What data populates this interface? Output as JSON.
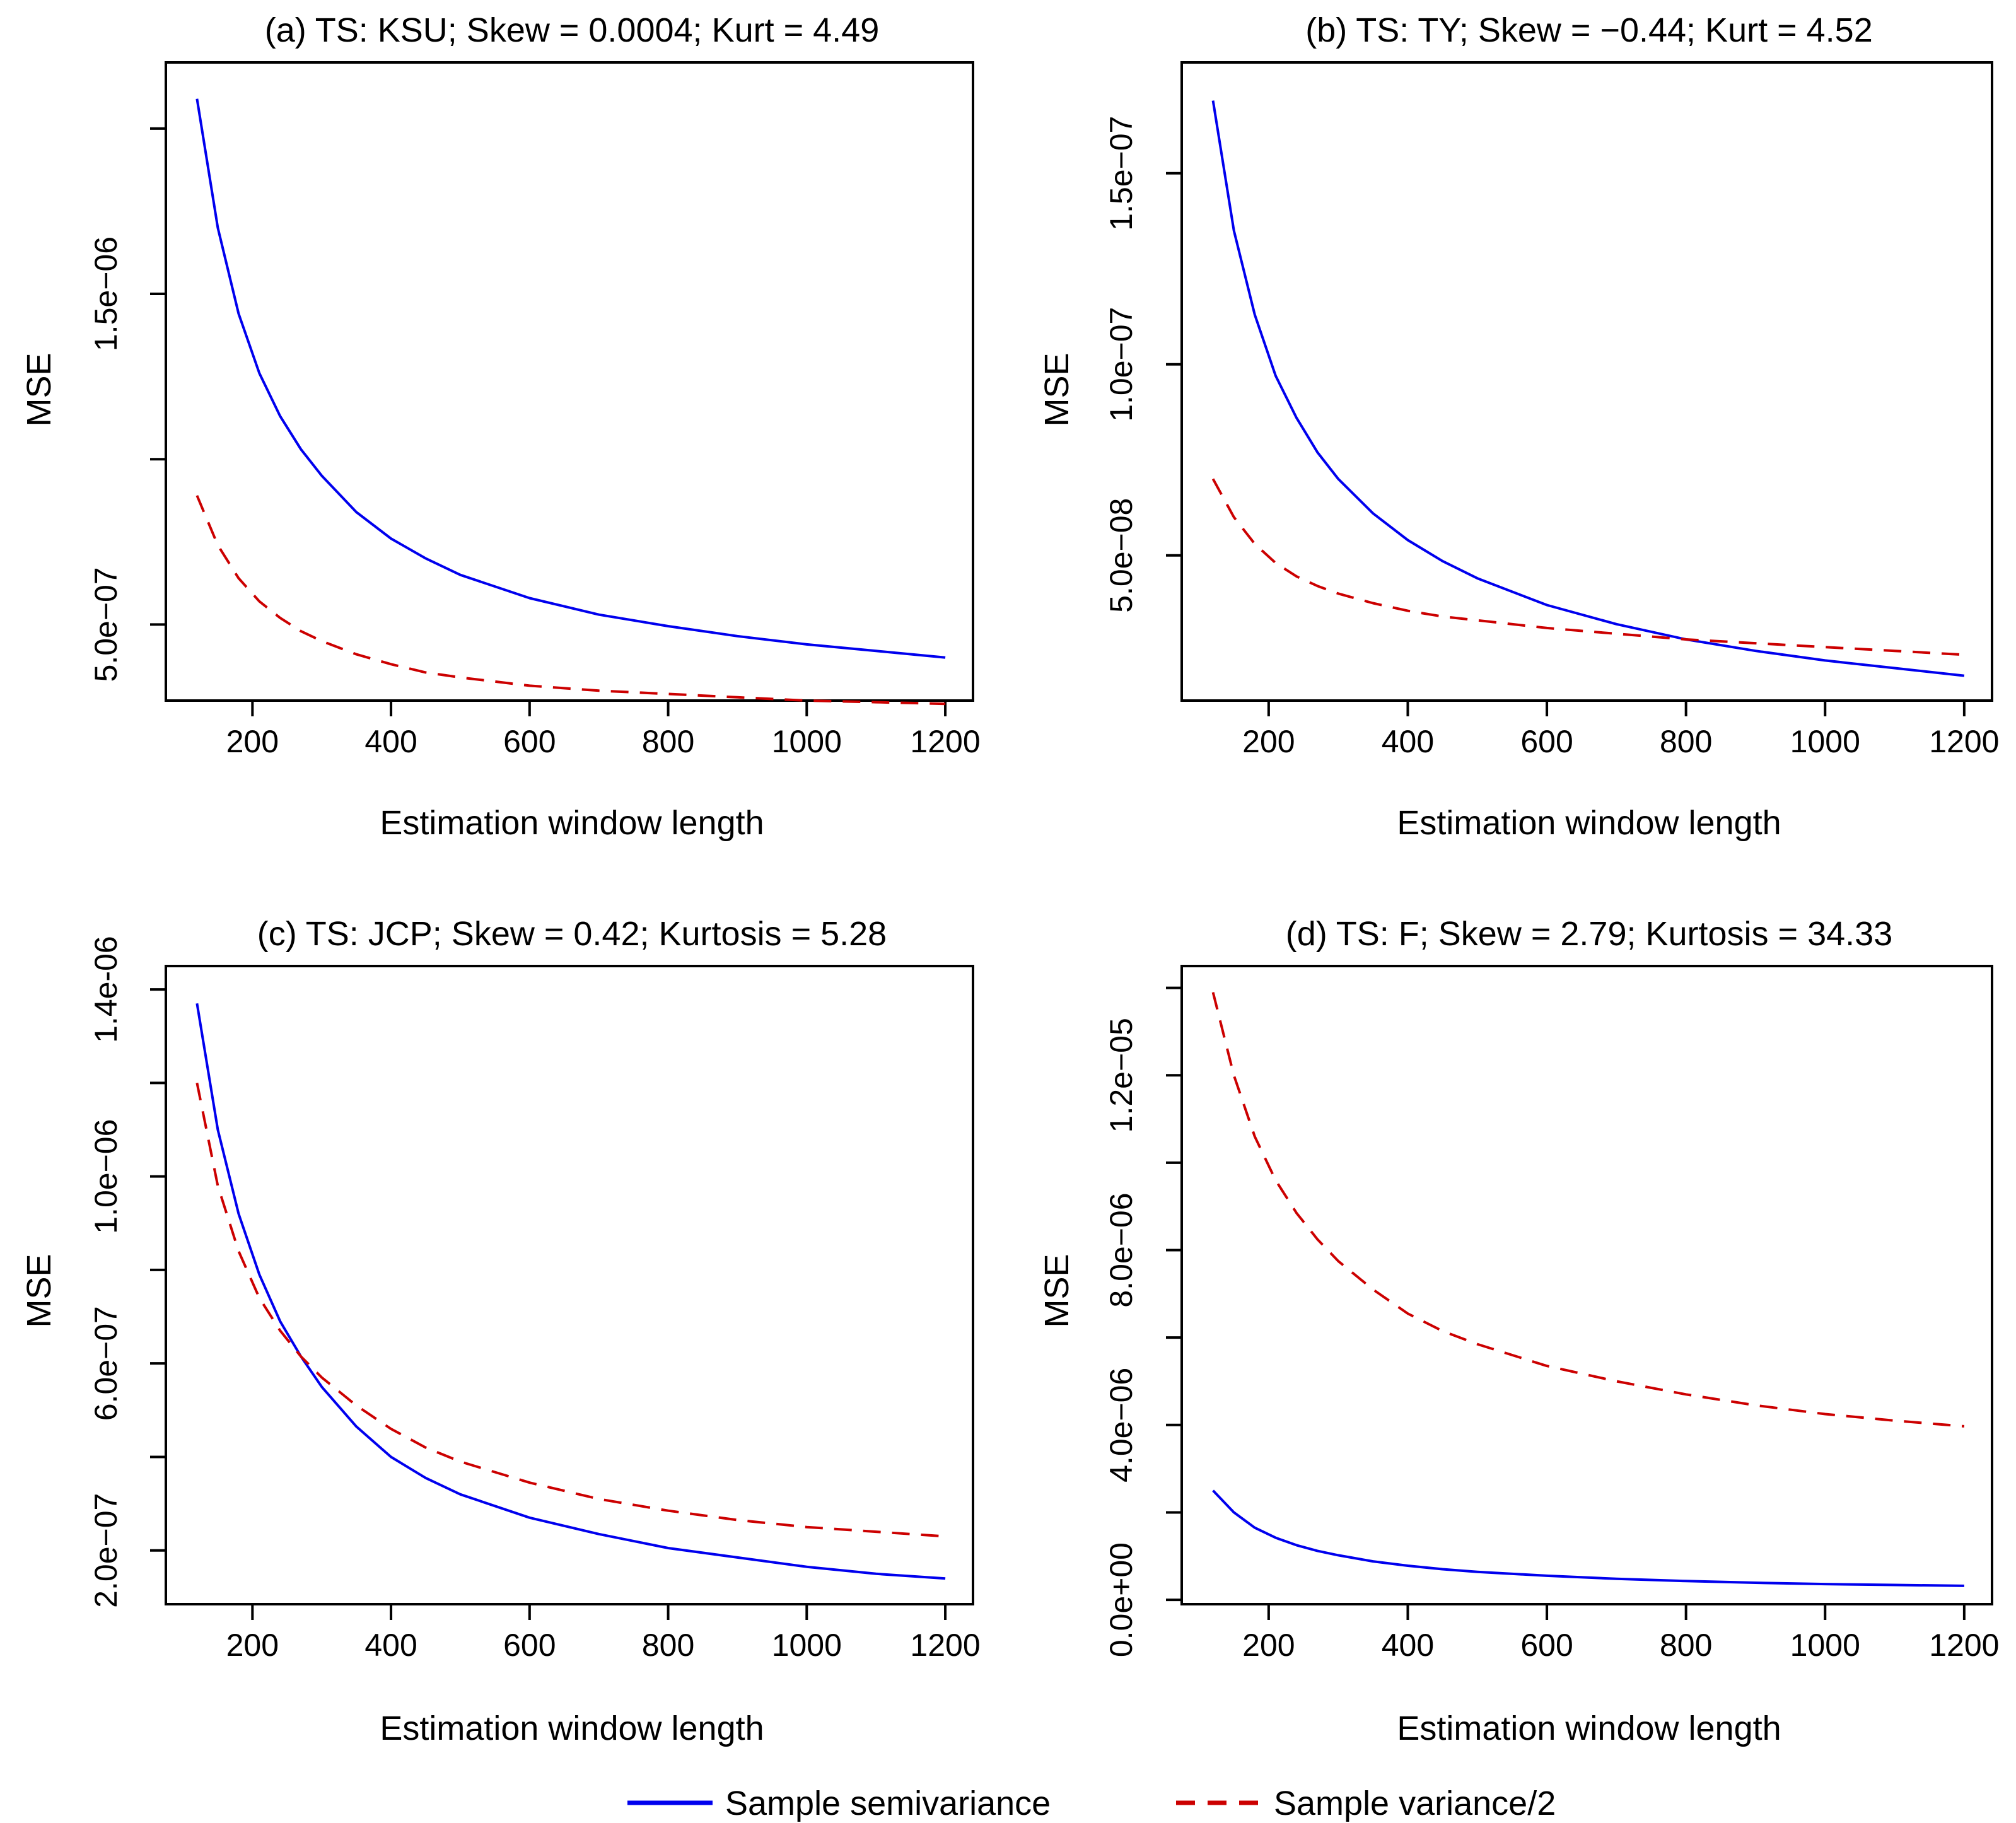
{
  "chart_data": [
    {
      "type": "line",
      "title": "(a) TS: KSU; Skew = 0.0004; Kurt = 4.49",
      "xlabel": "Estimation window length",
      "ylabel": "MSE",
      "xlim": [
        75,
        1240
      ],
      "ylim": [
        2.7e-07,
        2.2e-06
      ],
      "xticks": [
        200,
        400,
        600,
        800,
        1000,
        1200
      ],
      "xtick_labels": [
        "200",
        "400",
        "600",
        "800",
        "1000",
        "1200"
      ],
      "yticks": [
        5e-07,
        1e-06,
        1.5e-06,
        2e-06
      ],
      "ytick_labels": [
        "5.0e−07",
        "",
        "1.5e−06",
        ""
      ],
      "x": [
        120,
        150,
        180,
        210,
        240,
        270,
        300,
        350,
        400,
        450,
        500,
        600,
        700,
        800,
        900,
        1000,
        1100,
        1200
      ],
      "series": [
        {
          "name": "Sample semivariance",
          "values": [
            2.09e-06,
            1.7e-06,
            1.44e-06,
            1.26e-06,
            1.13e-06,
            1.03e-06,
            9.5e-07,
            8.4e-07,
            7.6e-07,
            7e-07,
            6.5e-07,
            5.8e-07,
            5.3e-07,
            4.95e-07,
            4.65e-07,
            4.4e-07,
            4.2e-07,
            4e-07
          ]
        },
        {
          "name": "Sample variance/2",
          "values": [
            8.9e-07,
            7.4e-07,
            6.4e-07,
            5.7e-07,
            5.2e-07,
            4.8e-07,
            4.5e-07,
            4.1e-07,
            3.8e-07,
            3.55e-07,
            3.4e-07,
            3.15e-07,
            3e-07,
            2.9e-07,
            2.8e-07,
            2.7e-07,
            2.65e-07,
            2.6e-07
          ]
        }
      ]
    },
    {
      "type": "line",
      "title": "(b) TS: TY; Skew = −0.44; Kurt = 4.52",
      "xlabel": "Estimation window length",
      "ylabel": "MSE",
      "xlim": [
        75,
        1240
      ],
      "ylim": [
        1.2e-08,
        1.79e-07
      ],
      "xticks": [
        200,
        400,
        600,
        800,
        1000,
        1200
      ],
      "xtick_labels": [
        "200",
        "400",
        "600",
        "800",
        "1000",
        "1200"
      ],
      "yticks": [
        5e-08,
        1e-07,
        1.5e-07
      ],
      "ytick_labels": [
        "5.0e−08",
        "1.0e−07",
        "1.5e−07"
      ],
      "x": [
        120,
        150,
        180,
        210,
        240,
        270,
        300,
        350,
        400,
        450,
        500,
        600,
        700,
        800,
        900,
        1000,
        1100,
        1200
      ],
      "series": [
        {
          "name": "Sample semivariance",
          "values": [
            1.69e-07,
            1.35e-07,
            1.13e-07,
            9.7e-08,
            8.6e-08,
            7.7e-08,
            7e-08,
            6.1e-08,
            5.4e-08,
            4.85e-08,
            4.4e-08,
            3.7e-08,
            3.2e-08,
            2.8e-08,
            2.5e-08,
            2.25e-08,
            2.05e-08,
            1.85e-08
          ]
        },
        {
          "name": "Sample variance/2",
          "values": [
            7e-08,
            6e-08,
            5.3e-08,
            4.8e-08,
            4.45e-08,
            4.2e-08,
            4e-08,
            3.75e-08,
            3.55e-08,
            3.4e-08,
            3.3e-08,
            3.1e-08,
            2.95e-08,
            2.8e-08,
            2.7e-08,
            2.6e-08,
            2.5e-08,
            2.4e-08
          ]
        }
      ]
    },
    {
      "type": "line",
      "title": "(c) TS: JCP; Skew = 0.42; Kurtosis = 5.28",
      "xlabel": "Estimation window length",
      "ylabel": "MSE",
      "xlim": [
        75,
        1240
      ],
      "ylim": [
        8.5e-08,
        1.45e-06
      ],
      "xticks": [
        200,
        400,
        600,
        800,
        1000,
        1200
      ],
      "xtick_labels": [
        "200",
        "400",
        "600",
        "800",
        "1000",
        "1200"
      ],
      "yticks": [
        2e-07,
        4e-07,
        6e-07,
        8e-07,
        1e-06,
        1.2e-06,
        1.4e-06
      ],
      "ytick_labels": [
        "2.0e−07",
        "",
        "6.0e−07",
        "",
        "1.0e−06",
        "",
        "1.4e-06"
      ],
      "x": [
        120,
        150,
        180,
        210,
        240,
        270,
        300,
        350,
        400,
        450,
        500,
        600,
        700,
        800,
        900,
        1000,
        1100,
        1200
      ],
      "series": [
        {
          "name": "Sample semivariance",
          "values": [
            1.37e-06,
            1.1e-06,
            9.2e-07,
            7.9e-07,
            6.9e-07,
            6.15e-07,
            5.5e-07,
            4.65e-07,
            4e-07,
            3.55e-07,
            3.2e-07,
            2.7e-07,
            2.35e-07,
            2.05e-07,
            1.85e-07,
            1.65e-07,
            1.5e-07,
            1.4e-07
          ]
        },
        {
          "name": "Sample variance/2",
          "values": [
            1.2e-06,
            9.8e-07,
            8.4e-07,
            7.4e-07,
            6.7e-07,
            6.15e-07,
            5.7e-07,
            5.1e-07,
            4.6e-07,
            4.2e-07,
            3.9e-07,
            3.45e-07,
            3.1e-07,
            2.85e-07,
            2.65e-07,
            2.5e-07,
            2.4e-07,
            2.3e-07
          ]
        }
      ]
    },
    {
      "type": "line",
      "title": "(d) TS: F; Skew = 2.79; Kurtosis = 34.33",
      "xlabel": "Estimation window length",
      "ylabel": "MSE",
      "xlim": [
        75,
        1240
      ],
      "ylim": [
        -1e-07,
        1.45e-05
      ],
      "xticks": [
        200,
        400,
        600,
        800,
        1000,
        1200
      ],
      "xtick_labels": [
        "200",
        "400",
        "600",
        "800",
        "1000",
        "1200"
      ],
      "yticks": [
        0.0,
        2e-06,
        4e-06,
        6e-06,
        8e-06,
        1e-05,
        1.2e-05,
        1.4e-05
      ],
      "ytick_labels": [
        "0.0e+00",
        "",
        "4.0e−06",
        "",
        "8.0e−06",
        "",
        "1.2e−05",
        ""
      ],
      "x": [
        120,
        150,
        180,
        210,
        240,
        270,
        300,
        350,
        400,
        450,
        500,
        600,
        700,
        800,
        900,
        1000,
        1100,
        1200
      ],
      "series": [
        {
          "name": "Sample semivariance",
          "values": [
            2.5e-06,
            2e-06,
            1.65e-06,
            1.42e-06,
            1.25e-06,
            1.12e-06,
            1.02e-06,
            8.8e-07,
            7.8e-07,
            7e-07,
            6.4e-07,
            5.5e-07,
            4.8e-07,
            4.3e-07,
            3.9e-07,
            3.6e-07,
            3.4e-07,
            3.2e-07
          ]
        },
        {
          "name": "Sample variance/2",
          "values": [
            1.39e-05,
            1.2e-05,
            1.06e-05,
            9.6e-06,
            8.85e-06,
            8.25e-06,
            7.75e-06,
            7.1e-06,
            6.55e-06,
            6.15e-06,
            5.85e-06,
            5.35e-06,
            5e-06,
            4.7e-06,
            4.45e-06,
            4.25e-06,
            4.1e-06,
            3.97e-06
          ]
        }
      ]
    }
  ],
  "legend": {
    "items": [
      {
        "label": "Sample semivariance",
        "color": "#0000ee",
        "dash": "solid"
      },
      {
        "label": "Sample variance/2",
        "color": "#cc0000",
        "dash": "dashed"
      }
    ]
  },
  "colors": {
    "semivariance": "#0000ee",
    "variance_half": "#cc0000"
  }
}
